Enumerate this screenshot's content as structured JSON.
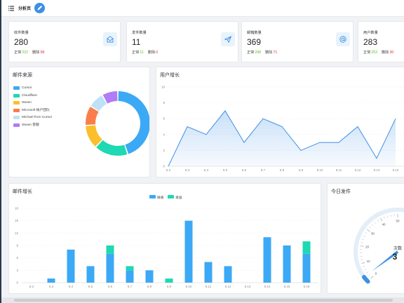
{
  "header": {
    "title": "分析页"
  },
  "stats": [
    {
      "label": "收件数量",
      "value": "280",
      "ok_label": "正常",
      "ok_value": "222",
      "bad_label": "删除",
      "bad_value": "58",
      "icon": "mail-open-icon"
    },
    {
      "label": "发件数量",
      "value": "11",
      "ok_label": "正常",
      "ok_value": "11",
      "bad_label": "删除",
      "bad_value": "0",
      "icon": "send-icon"
    },
    {
      "label": "邮箱数量",
      "value": "369",
      "ok_label": "正常",
      "ok_value": "298",
      "bad_label": "删除",
      "bad_value": "71",
      "icon": "at-sign-icon"
    },
    {
      "label": "用户数量",
      "value": "283",
      "ok_label": "正常",
      "ok_value": "253",
      "bad_label": "删除",
      "bad_value": "30",
      "icon": "user-icon"
    }
  ],
  "sources_panel": {
    "title": "邮件来源"
  },
  "users_panel": {
    "title": "用户增长"
  },
  "mail_panel": {
    "title": "邮件增长"
  },
  "today_panel": {
    "title": "今日发件"
  },
  "colors": {
    "blue": "#3ba9f5",
    "teal": "#1ed9b1",
    "yellow": "#fbbf2c",
    "orange": "#fb7d4c",
    "lightblue": "#bfe1f7",
    "purple": "#b17cf5"
  },
  "chart_data": [
    {
      "type": "pie",
      "title": "邮件来源",
      "legend_position": "left",
      "labels": [
        "Cursor",
        "Cloudflare",
        "Steam",
        "Microsoft 帐户团队",
        "Michael from Cursor",
        "Steam 客服"
      ],
      "values": [
        45,
        17,
        12,
        10,
        8,
        8
      ],
      "colors": [
        "#3ba9f5",
        "#1ed9b1",
        "#fbbf2c",
        "#fb7d4c",
        "#bfe1f7",
        "#b17cf5"
      ]
    },
    {
      "type": "area",
      "title": "用户增长",
      "x": [
        "6.2",
        "6.3",
        "6.4",
        "6.5",
        "6.6",
        "6.7",
        "6.8",
        "6.9",
        "6.10",
        "6.11",
        "6.12",
        "6.13",
        "6.14"
      ],
      "y": [
        0,
        5,
        4,
        7,
        3,
        6,
        5,
        2,
        3,
        3,
        5,
        1,
        6
      ],
      "ylim": [
        0,
        10
      ],
      "yticks": [
        "0",
        "2",
        "4",
        "6",
        "8",
        "10"
      ]
    },
    {
      "type": "bar",
      "title": "邮件增长",
      "categories": [
        "6.2",
        "6.3",
        "6.4",
        "6.5",
        "6.6",
        "6.7",
        "6.8",
        "6.9",
        "6.10",
        "6.11",
        "6.12",
        "6.13",
        "6.14",
        "6.15",
        "6.16"
      ],
      "series": [
        {
          "name": "接收",
          "values": [
            0,
            1,
            8,
            4,
            7,
            3,
            3,
            0,
            15,
            5,
            4,
            0,
            11,
            9,
            7
          ]
        },
        {
          "name": "发送",
          "values": [
            0,
            0,
            0,
            0,
            2,
            1,
            0,
            1,
            0,
            0,
            0,
            0,
            0,
            0,
            3
          ]
        }
      ],
      "stacked": true,
      "ylim": [
        0,
        18
      ],
      "yticks": [
        "0",
        "3",
        "6",
        "9",
        "12",
        "15",
        "18"
      ],
      "legend_position": "top"
    },
    {
      "type": "gauge",
      "title": "今日发件",
      "label": "次数",
      "value": 3,
      "ticks": [
        "0",
        "10",
        "20",
        "30",
        "40",
        "50"
      ],
      "max": 100
    }
  ]
}
